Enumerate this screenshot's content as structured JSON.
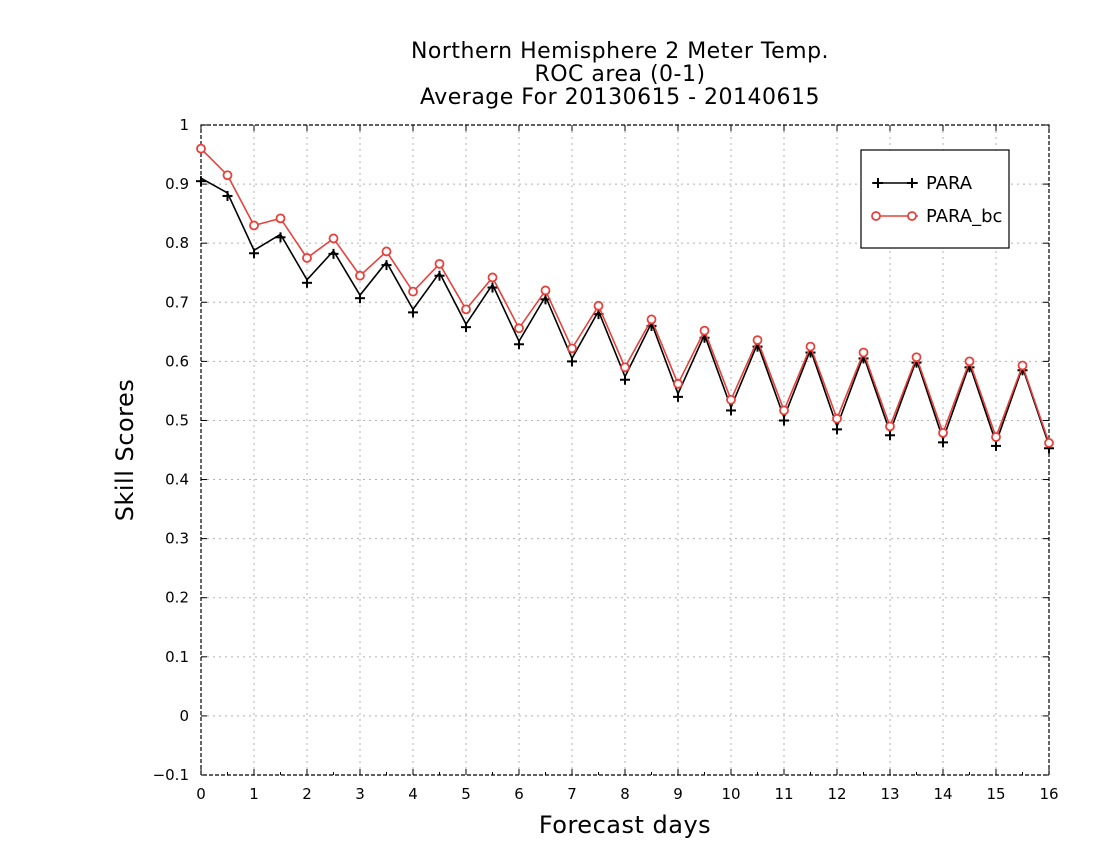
{
  "chart_data": {
    "type": "line",
    "title_lines": [
      "Northern Hemisphere 2 Meter Temp.",
      "ROC area (0-1)",
      "Average For 20130615 - 20140615"
    ],
    "xlabel": "Forecast days",
    "ylabel": "Skill Scores",
    "xlim": [
      0,
      16
    ],
    "ylim": [
      -0.1,
      1
    ],
    "x_ticks": [
      0,
      1,
      2,
      3,
      4,
      5,
      6,
      7,
      8,
      9,
      10,
      11,
      12,
      13,
      14,
      15,
      16
    ],
    "y_ticks": [
      -0.1,
      0,
      0.1,
      0.2,
      0.3,
      0.4,
      0.5,
      0.6,
      0.7,
      0.8,
      0.9,
      1
    ],
    "y_tick_labels": [
      "−0.1",
      "0",
      "0.1",
      "0.2",
      "0.3",
      "0.4",
      "0.5",
      "0.6",
      "0.7",
      "0.8",
      "0.9",
      "1"
    ],
    "grid": true,
    "legend_position": "top-right",
    "x": [
      0,
      0.5,
      1,
      1.5,
      2,
      2.5,
      3,
      3.5,
      4,
      4.5,
      5,
      5.5,
      6,
      6.5,
      7,
      7.5,
      8,
      8.5,
      9,
      9.5,
      10,
      10.5,
      11,
      11.5,
      12,
      12.5,
      13,
      13.5,
      14,
      14.5,
      15,
      15.5,
      16
    ],
    "series": [
      {
        "name": "PARA",
        "color": "#000000",
        "marker": "plus",
        "values": [
          0.91,
          0.885,
          0.788,
          0.815,
          0.738,
          0.787,
          0.712,
          0.768,
          0.688,
          0.75,
          0.663,
          0.73,
          0.634,
          0.71,
          0.605,
          0.685,
          0.574,
          0.665,
          0.545,
          0.645,
          0.522,
          0.63,
          0.505,
          0.62,
          0.49,
          0.61,
          0.48,
          0.603,
          0.468,
          0.595,
          0.462,
          0.59,
          0.458
        ]
      },
      {
        "name": "PARA_bc",
        "color": "#e8403a",
        "marker": "circle",
        "values": [
          0.96,
          0.915,
          0.83,
          0.842,
          0.775,
          0.808,
          0.745,
          0.786,
          0.718,
          0.765,
          0.688,
          0.742,
          0.656,
          0.72,
          0.622,
          0.694,
          0.59,
          0.671,
          0.562,
          0.652,
          0.535,
          0.636,
          0.517,
          0.625,
          0.503,
          0.615,
          0.49,
          0.607,
          0.479,
          0.6,
          0.472,
          0.593,
          0.462
        ]
      }
    ]
  }
}
